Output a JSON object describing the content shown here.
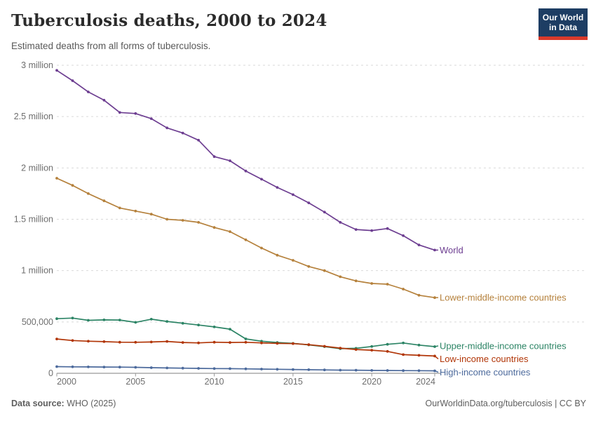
{
  "header": {
    "title": "Tuberculosis deaths, 2000 to 2024",
    "subtitle": "Estimated deaths from all forms of tuberculosis.",
    "logo": {
      "line1": "Our World",
      "line2": "in Data"
    }
  },
  "footer": {
    "source_label": "Data source:",
    "source_value": " WHO (2025)",
    "credit": "OurWorldinData.org/tuberculosis | CC BY"
  },
  "colors": {
    "grid": "#d9d9d9",
    "axis": "#999999",
    "tick_text": "#6e6e6e",
    "logo_bg": "#1d3d63",
    "logo_bar": "#d93a2b"
  },
  "chart_data": {
    "type": "line",
    "title": "Tuberculosis deaths, 2000 to 2024",
    "subtitle": "Estimated deaths from all forms of tuberculosis.",
    "x": [
      2000,
      2001,
      2002,
      2003,
      2004,
      2005,
      2006,
      2007,
      2008,
      2009,
      2010,
      2011,
      2012,
      2013,
      2014,
      2015,
      2016,
      2017,
      2018,
      2019,
      2020,
      2021,
      2022,
      2023,
      2024
    ],
    "x_ticks": [
      2000,
      2005,
      2010,
      2015,
      2020,
      2024
    ],
    "ylim": [
      0,
      3000000
    ],
    "grid": true,
    "legend_position": "right-end-labels",
    "y_ticks": [
      {
        "value": 0,
        "label": "0"
      },
      {
        "value": 500000,
        "label": "500,000"
      },
      {
        "value": 1000000,
        "label": "1 million"
      },
      {
        "value": 1500000,
        "label": "1.5 million"
      },
      {
        "value": 2000000,
        "label": "2 million"
      },
      {
        "value": 2500000,
        "label": "2.5 million"
      },
      {
        "value": 3000000,
        "label": "3 million"
      }
    ],
    "series": [
      {
        "name": "World",
        "color": "#6d3e91",
        "values": [
          2950000,
          2850000,
          2740000,
          2660000,
          2540000,
          2530000,
          2480000,
          2390000,
          2340000,
          2270000,
          2110000,
          2070000,
          1970000,
          1890000,
          1810000,
          1740000,
          1660000,
          1570000,
          1470000,
          1400000,
          1390000,
          1410000,
          1340000,
          1250000,
          1200000
        ]
      },
      {
        "name": "Lower-middle-income countries",
        "color": "#b5813c",
        "values": [
          1900000,
          1830000,
          1750000,
          1680000,
          1610000,
          1580000,
          1550000,
          1500000,
          1490000,
          1470000,
          1420000,
          1380000,
          1300000,
          1220000,
          1150000,
          1100000,
          1040000,
          1000000,
          940000,
          900000,
          875000,
          868000,
          820000,
          760000,
          737000
        ]
      },
      {
        "name": "Upper-middle-income countries",
        "color": "#2c8465",
        "values": [
          532000,
          538000,
          516000,
          520000,
          519000,
          496000,
          527000,
          505000,
          487000,
          470000,
          452000,
          430000,
          335000,
          312000,
          300000,
          291000,
          277000,
          260000,
          240000,
          243000,
          261000,
          282000,
          295000,
          275000,
          260000
        ]
      },
      {
        "name": "Low-income countries",
        "color": "#b13507",
        "values": [
          334000,
          319000,
          312000,
          308000,
          303000,
          302000,
          305000,
          310000,
          300000,
          296000,
          303000,
          300000,
          302000,
          296000,
          291000,
          289000,
          279000,
          263000,
          245000,
          232000,
          225000,
          213000,
          182000,
          175000,
          168000
        ]
      },
      {
        "name": "High-income countries",
        "color": "#4c6a9c",
        "values": [
          65000,
          63000,
          62000,
          61000,
          60000,
          58000,
          55000,
          52000,
          50000,
          48000,
          46000,
          45000,
          43000,
          41000,
          39000,
          37000,
          35000,
          33000,
          31000,
          30000,
          28000,
          27000,
          26000,
          25000,
          24000
        ]
      }
    ]
  }
}
